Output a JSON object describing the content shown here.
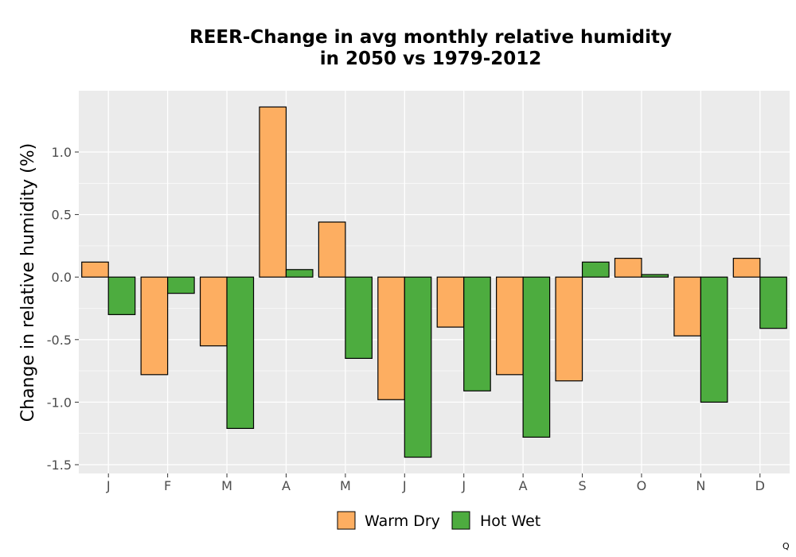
{
  "chart_data": {
    "type": "bar",
    "title_line1": "REER-Change in avg monthly relative humidity",
    "title_line2": "in 2050 vs 1979-2012",
    "xlabel": "",
    "ylabel": "Change in relative humidity (%)",
    "categories": [
      "J",
      "F",
      "M",
      "A",
      "M",
      "J",
      "J",
      "A",
      "S",
      "O",
      "N",
      "D"
    ],
    "series": [
      {
        "name": "Warm Dry",
        "color": "#FDAE61",
        "values": [
          0.12,
          -0.78,
          -0.55,
          1.36,
          0.44,
          -0.98,
          -0.4,
          -0.78,
          -0.83,
          0.15,
          -0.47,
          0.15
        ]
      },
      {
        "name": "Hot Wet",
        "color": "#4DAC3F",
        "values": [
          -0.3,
          -0.13,
          -1.21,
          0.06,
          -0.65,
          -1.44,
          -0.91,
          -1.28,
          0.12,
          0.02,
          -1.0,
          -0.41
        ]
      }
    ],
    "yticks": [
      1.0,
      0.5,
      0.0,
      -0.5,
      -1.0,
      -1.5
    ],
    "ytick_labels": [
      "1.0",
      "0.5",
      "0.0",
      "-0.5",
      "-1.0",
      "-1.5"
    ],
    "ylim": [
      -1.57,
      1.49
    ],
    "grid": true,
    "legend_position": "bottom",
    "panel_background": "#EBEBEB",
    "corner_mark": "Q"
  }
}
